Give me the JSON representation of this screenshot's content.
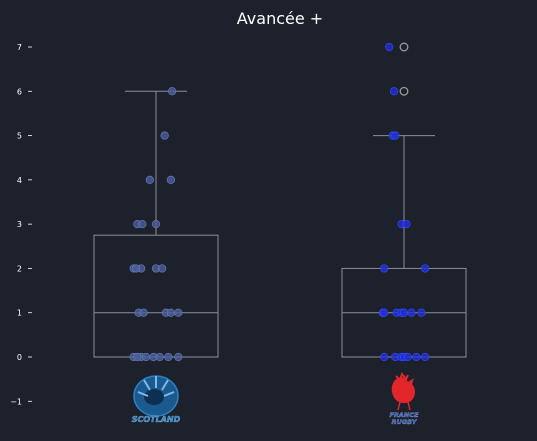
{
  "chart_data": {
    "type": "box",
    "title": "Avancée +",
    "xlabel": "",
    "ylabel": "",
    "ylim": [
      -1.3,
      7.3
    ],
    "yticks": [
      -1,
      0,
      1,
      2,
      3,
      4,
      5,
      6,
      7
    ],
    "grid": false,
    "categories": [
      "SCOTLAND",
      "FRANCE RUGBY"
    ],
    "colors": {
      "background": "#1c212c",
      "box_line": "#8a8f99",
      "scotland_points": "#4b5f9e",
      "france_points": "#1f2fd9",
      "outlier": "#9a9a9a",
      "text": "#ffffff"
    },
    "series": [
      {
        "team": "SCOTLAND",
        "logo_text": "SCOTLAND",
        "box": {
          "q1": 0,
          "median": 1,
          "q3": 2.75,
          "whisker_low": 0,
          "whisker_high": 6
        },
        "outliers": [],
        "points": [
          {
            "x": -0.18,
            "y": 0
          },
          {
            "x": -0.12,
            "y": 0
          },
          {
            "x": -0.08,
            "y": 0
          },
          {
            "x": -0.02,
            "y": 0
          },
          {
            "x": 0.03,
            "y": 0
          },
          {
            "x": 0.1,
            "y": 0
          },
          {
            "x": 0.18,
            "y": 0
          },
          {
            "x": -0.15,
            "y": 0
          },
          {
            "x": -0.14,
            "y": 1
          },
          {
            "x": -0.1,
            "y": 1
          },
          {
            "x": 0.08,
            "y": 1
          },
          {
            "x": 0.12,
            "y": 1
          },
          {
            "x": 0.18,
            "y": 1
          },
          {
            "x": -0.18,
            "y": 2
          },
          {
            "x": -0.12,
            "y": 2
          },
          {
            "x": 0.0,
            "y": 2
          },
          {
            "x": 0.05,
            "y": 2
          },
          {
            "x": -0.16,
            "y": 2
          },
          {
            "x": -0.15,
            "y": 3
          },
          {
            "x": -0.11,
            "y": 3
          },
          {
            "x": 0.0,
            "y": 3
          },
          {
            "x": -0.05,
            "y": 4
          },
          {
            "x": 0.12,
            "y": 4
          },
          {
            "x": 0.07,
            "y": 5
          },
          {
            "x": 0.13,
            "y": 6
          }
        ]
      },
      {
        "team": "FRANCE RUGBY",
        "logo_text_top": "FRANCE",
        "logo_text_bottom": "RUGBY",
        "box": {
          "q1": 0,
          "median": 1,
          "q3": 2,
          "whisker_low": 0,
          "whisker_high": 5
        },
        "outliers": [
          {
            "y": 6
          },
          {
            "y": 7
          }
        ],
        "points": [
          {
            "x": -0.16,
            "y": 0
          },
          {
            "x": -0.07,
            "y": 0
          },
          {
            "x": -0.02,
            "y": 0
          },
          {
            "x": 0.0,
            "y": 0
          },
          {
            "x": 0.03,
            "y": 0
          },
          {
            "x": 0.1,
            "y": 0
          },
          {
            "x": 0.17,
            "y": 0
          },
          {
            "x": -0.17,
            "y": 1
          },
          {
            "x": -0.06,
            "y": 1
          },
          {
            "x": -0.02,
            "y": 1
          },
          {
            "x": 0.0,
            "y": 1
          },
          {
            "x": 0.06,
            "y": 1
          },
          {
            "x": 0.14,
            "y": 1
          },
          {
            "x": -0.16,
            "y": 1
          },
          {
            "x": -0.16,
            "y": 2
          },
          {
            "x": 0.17,
            "y": 2
          },
          {
            "x": -0.02,
            "y": 3
          },
          {
            "x": 0.02,
            "y": 3
          },
          {
            "x": -0.09,
            "y": 5
          },
          {
            "x": -0.07,
            "y": 5
          },
          {
            "x": -0.08,
            "y": 6
          },
          {
            "x": -0.12,
            "y": 7
          }
        ]
      }
    ]
  }
}
